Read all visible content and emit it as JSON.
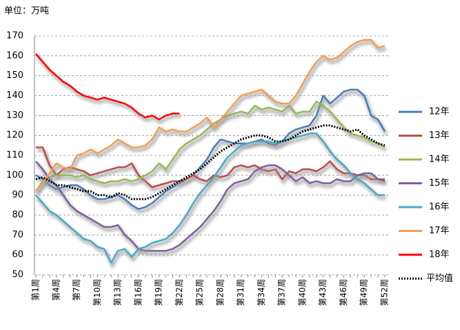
{
  "chart_data": {
    "type": "line",
    "unit_label": "单位：万吨",
    "categories": [
      "第1周",
      null,
      null,
      "第4周",
      null,
      null,
      "第7周",
      null,
      null,
      "第10周",
      null,
      null,
      "第13周",
      null,
      null,
      "第16周",
      null,
      null,
      "第19周",
      null,
      null,
      "第22周",
      null,
      null,
      "第25周",
      null,
      null,
      "第28周",
      null,
      null,
      "第31周",
      null,
      null,
      "第34周",
      null,
      null,
      "第37周",
      null,
      null,
      "第40周",
      null,
      null,
      "第43周",
      null,
      null,
      "第46周",
      null,
      null,
      "第49周",
      null,
      null,
      "第52周"
    ],
    "ylim": [
      50,
      170
    ],
    "yticks": [
      50,
      60,
      70,
      80,
      90,
      100,
      110,
      120,
      130,
      140,
      150,
      160,
      170
    ],
    "grid": true,
    "legend": "right",
    "series": [
      {
        "name": "12年",
        "color": "#4a7ebb",
        "values": [
          100,
          98,
          95,
          93,
          94,
          95,
          95,
          93,
          90,
          88,
          88,
          89,
          90,
          88,
          85,
          83,
          84,
          86,
          89,
          92,
          94,
          96,
          98,
          100,
          104,
          108,
          114,
          118,
          117,
          116,
          116,
          116,
          117,
          118,
          116,
          115,
          117,
          121,
          123,
          124,
          125,
          130,
          140,
          136,
          139,
          142,
          143,
          143,
          140,
          130,
          128,
          122
        ]
      },
      {
        "name": "13年",
        "color": "#be4b48",
        "values": [
          114,
          114,
          105,
          100,
          103,
          104,
          103,
          102,
          100,
          101,
          102,
          103,
          104,
          104,
          106,
          100,
          97,
          94,
          95,
          96,
          97,
          97,
          98,
          100,
          98,
          97,
          100,
          99,
          100,
          104,
          105,
          104,
          105,
          103,
          102,
          103,
          98,
          102,
          101,
          103,
          103,
          102,
          104,
          107,
          103,
          101,
          101,
          100,
          100,
          98,
          98,
          98
        ]
      },
      {
        "name": "14年",
        "color": "#98b954",
        "values": [
          92,
          97,
          99,
          100,
          100,
          100,
          99,
          100,
          98,
          97,
          96,
          97,
          97,
          98,
          97,
          98,
          100,
          102,
          106,
          103,
          108,
          113,
          116,
          118,
          120,
          123,
          126,
          128,
          130,
          131,
          132,
          131,
          135,
          133,
          134,
          133,
          132,
          135,
          131,
          132,
          132,
          137,
          135,
          132,
          128,
          124,
          121,
          120,
          119,
          117,
          116,
          114
        ]
      },
      {
        "name": "15年",
        "color": "#7d60a0",
        "values": [
          107,
          103,
          98,
          95,
          90,
          85,
          82,
          80,
          78,
          76,
          74,
          74,
          75,
          70,
          67,
          63,
          62,
          62,
          62,
          62,
          63,
          65,
          68,
          71,
          74,
          78,
          82,
          87,
          93,
          96,
          97,
          98,
          102,
          104,
          105,
          105,
          103,
          100,
          97,
          99,
          96,
          97,
          96,
          96,
          98,
          97,
          97,
          100,
          101,
          101,
          98,
          97
        ]
      },
      {
        "name": "16年",
        "color": "#46aac5",
        "values": [
          90,
          86,
          82,
          80,
          77,
          74,
          71,
          68,
          67,
          64,
          63,
          56,
          62,
          63,
          59,
          63,
          64,
          66,
          67,
          68,
          71,
          75,
          80,
          86,
          91,
          95,
          99,
          104,
          109,
          112,
          115,
          116,
          117,
          117,
          117,
          116,
          117,
          118,
          119,
          120,
          121,
          121,
          117,
          112,
          108,
          105,
          101,
          98,
          96,
          93,
          90,
          90
        ]
      },
      {
        "name": "17年",
        "color": "#f59d56",
        "values": [
          92,
          96,
          101,
          106,
          104,
          103,
          110,
          111,
          113,
          111,
          113,
          115,
          118,
          116,
          114,
          114,
          115,
          118,
          124,
          122,
          123,
          122,
          122,
          124,
          126,
          129,
          124,
          128,
          132,
          136,
          140,
          141,
          142,
          143,
          140,
          137,
          136,
          136,
          140,
          146,
          152,
          157,
          160,
          158,
          159,
          162,
          165,
          167,
          168,
          168,
          164,
          165
        ]
      },
      {
        "name": "18年",
        "color": "#ff0000",
        "values": [
          161,
          157,
          153,
          150,
          147,
          145,
          142,
          140,
          139,
          138,
          139,
          138,
          137,
          136,
          134,
          131,
          129,
          130,
          128,
          130,
          131,
          131,
          null,
          null,
          null,
          null,
          null,
          null,
          null,
          null,
          null,
          null,
          null,
          null,
          null,
          null,
          null,
          null,
          null,
          null,
          null,
          null,
          null,
          null,
          null,
          null,
          null,
          null,
          null,
          null,
          null,
          null
        ]
      },
      {
        "name": "平均值",
        "color": "#000000",
        "style": "dotted",
        "values": [
          98,
          99,
          97,
          95,
          95,
          94,
          93,
          92,
          92,
          90,
          90,
          89,
          91,
          90,
          88,
          88,
          88,
          89,
          91,
          93,
          95,
          97,
          99,
          101,
          103,
          106,
          109,
          112,
          114,
          116,
          118,
          119,
          120,
          120,
          119,
          117,
          117,
          118,
          120,
          122,
          123,
          124,
          125,
          125,
          124,
          123,
          122,
          123,
          120,
          118,
          116,
          115
        ]
      }
    ]
  }
}
